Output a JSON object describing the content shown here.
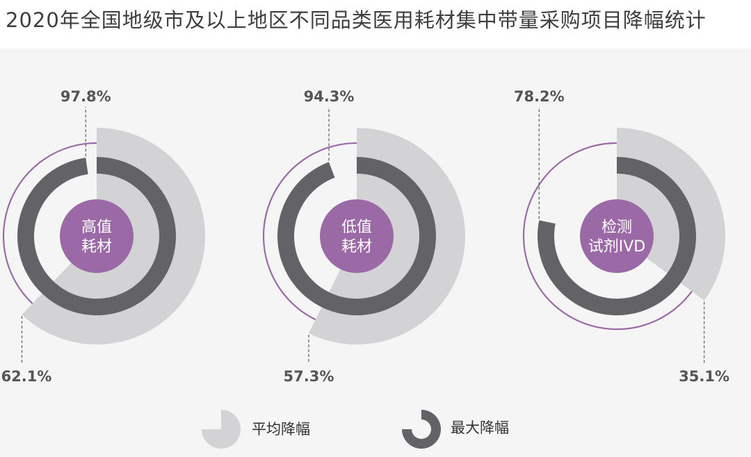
{
  "title": "2020年全国地级市及以上地区不同品类医用耗材集中带量采购项目降幅统计",
  "chart_data": {
    "type": "radial-bar",
    "series": [
      {
        "name": "平均降幅",
        "color": "#d3d3d5"
      },
      {
        "name": "最大降幅",
        "color": "#636266"
      }
    ],
    "categories": [
      {
        "label_line1": "高值",
        "label_line2": "耗材",
        "avg": 62.1,
        "max": 97.8,
        "avg_label": "62.1%",
        "max_label": "97.8%"
      },
      {
        "label_line1": "低值",
        "label_line2": "耗材",
        "avg": 57.3,
        "max": 94.3,
        "avg_label": "57.3%",
        "max_label": "94.3%"
      },
      {
        "label_line1": "检测",
        "label_line2": "试剂IVD",
        "avg": 35.1,
        "max": 78.2,
        "avg_label": "35.1%",
        "max_label": "78.2%"
      }
    ],
    "colors": {
      "center": "#9b6aa6",
      "outline": "#9b6aa6"
    }
  },
  "legend": {
    "avg_label": "平均降幅",
    "max_label": "最大降幅"
  }
}
